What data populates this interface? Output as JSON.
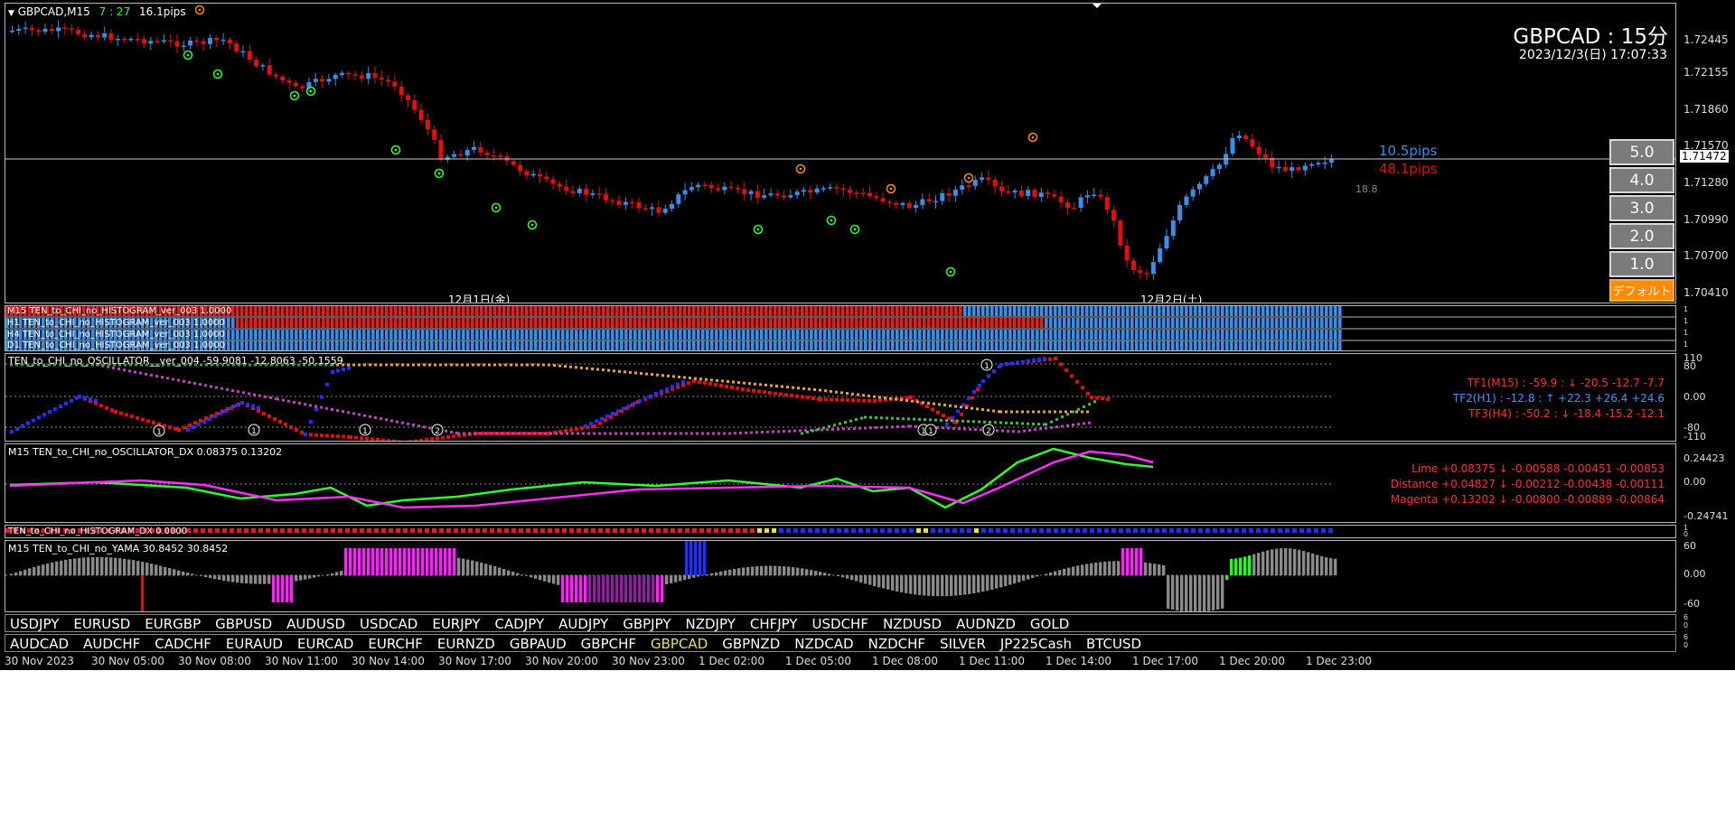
{
  "main": {
    "header": {
      "symbol": "GBPCAD,M15",
      "time": "7 : 27",
      "spread": "16.1pips"
    },
    "title": "GBPCAD : 15分",
    "datetime": "2023/12/3(日) 17:07:33",
    "price_axis": [
      "1.72445",
      "1.72155",
      "1.71860",
      "1.71570",
      "1.71280",
      "1.70990",
      "1.70700",
      "1.70410"
    ],
    "current_price": "1.71472",
    "pips_up": "10.5pips",
    "pips_down": "48.1pips",
    "small_value": "18.8",
    "day_labels": [
      "12月1日(金)",
      "12月2日(土)"
    ],
    "buttons": [
      "5.0",
      "4.0",
      "3.0",
      "2.0",
      "1.0",
      "デフォルト"
    ]
  },
  "histograms": [
    {
      "label": "M15 TEN_to_CHI_no_HISTOGRAM_ver_003 1.0000",
      "scale": [
        "1",
        "0"
      ]
    },
    {
      "label": "H1 TEN_to_CHI_no_HISTOGRAM_ver_003 1.0000",
      "scale": [
        "1",
        "0"
      ]
    },
    {
      "label": "H4 TEN_to_CHI_no_HISTOGRAM_ver_003 1.0000",
      "scale": [
        "1",
        "0"
      ]
    },
    {
      "label": "D1 TEN_to_CHI_no_HISTOGRAM_ver_003 1.0000",
      "scale": [
        "1",
        "0"
      ]
    }
  ],
  "oscillator": {
    "label": "TEN_to_CHI_no_OSCILLATOR__ver_004 -59.9081 -12.8063 -50.1559",
    "scale": [
      "110",
      "80",
      "0.00",
      "-80",
      "-110"
    ],
    "lines": [
      {
        "text": "TF1(M15) : -59.9 : ↓ -20.5 -12.7 -7.7",
        "color": "#ff3030"
      },
      {
        "text": "TF2(H1) : -12.8 : ↑ +22.3 +26.4 +24.6",
        "color": "#4a90ff"
      },
      {
        "text": "TF3(H4) : -50.2 : ↓ -18.4 -15.2 -12.1",
        "color": "#ff3030"
      }
    ],
    "markers": [
      "1",
      "1",
      "1",
      "2",
      "1",
      "1",
      "2",
      "1",
      "5"
    ]
  },
  "dx": {
    "label": "M15 TEN_to_CHI_no_OSCILLATOR_DX  0.08375 0.13202",
    "scale": [
      "0.24423",
      "0.00",
      "-0.24741"
    ],
    "lines": [
      {
        "text": "Lime +0.08375 ↓ -0.00588 -0.00451 -0.00853",
        "color": "#ff3030"
      },
      {
        "text": "Distance +0.04827 ↓ -0.00212 -0.00438 -0.00111",
        "color": "#ff3030"
      },
      {
        "text": "Magenta +0.13202 ↓ -0.00800 -0.00889 -0.00864",
        "color": "#ff3030"
      }
    ]
  },
  "histdx": {
    "label": "TEN_to_CHI_no_HISTOGRAM_DX 0.0000",
    "scale": [
      "1",
      "0"
    ]
  },
  "yama": {
    "label": "M15  TEN_to_CHI_no_YAMA  30.8452 30.8452",
    "scale": [
      "60",
      "0.00",
      "-60"
    ]
  },
  "symbols_row1": [
    "USDJPY",
    "EURUSD",
    "EURGBP",
    "GBPUSD",
    "AUDUSD",
    "USDCAD",
    "EURJPY",
    "CADJPY",
    "AUDJPY",
    "GBPJPY",
    "NZDJPY",
    "CHFJPY",
    "USDCHF",
    "NZDUSD",
    "AUDNZD",
    "GOLD"
  ],
  "symbols_row2": [
    "AUDCAD",
    "AUDCHF",
    "CADCHF",
    "EURAUD",
    "EURCAD",
    "EURCHF",
    "EURNZD",
    "GBPAUD",
    "GBPCHF",
    "GBPCAD",
    "GBPNZD",
    "NZDCAD",
    "NZDCHF",
    "SILVER",
    "JP225Cash",
    "BTCUSD"
  ],
  "symbols_active": "GBPCAD",
  "symbols_scale": [
    "6",
    "0"
  ],
  "time_axis": [
    "30 Nov 2023",
    "30 Nov 05:00",
    "30 Nov 08:00",
    "30 Nov 11:00",
    "30 Nov 14:00",
    "30 Nov 17:00",
    "30 Nov 20:00",
    "30 Nov 23:00",
    "1 Dec 02:00",
    "1 Dec 05:00",
    "1 Dec 08:00",
    "1 Dec 11:00",
    "1 Dec 14:00",
    "1 Dec 17:00",
    "1 Dec 20:00",
    "1 Dec 23:00"
  ],
  "colors": {
    "bull": "#3a8ee6",
    "bear": "#e01010",
    "magenta": "#ff30ff",
    "cyan": "#40e0f0",
    "lime": "#30ff30",
    "orange": "#ff8c00"
  }
}
